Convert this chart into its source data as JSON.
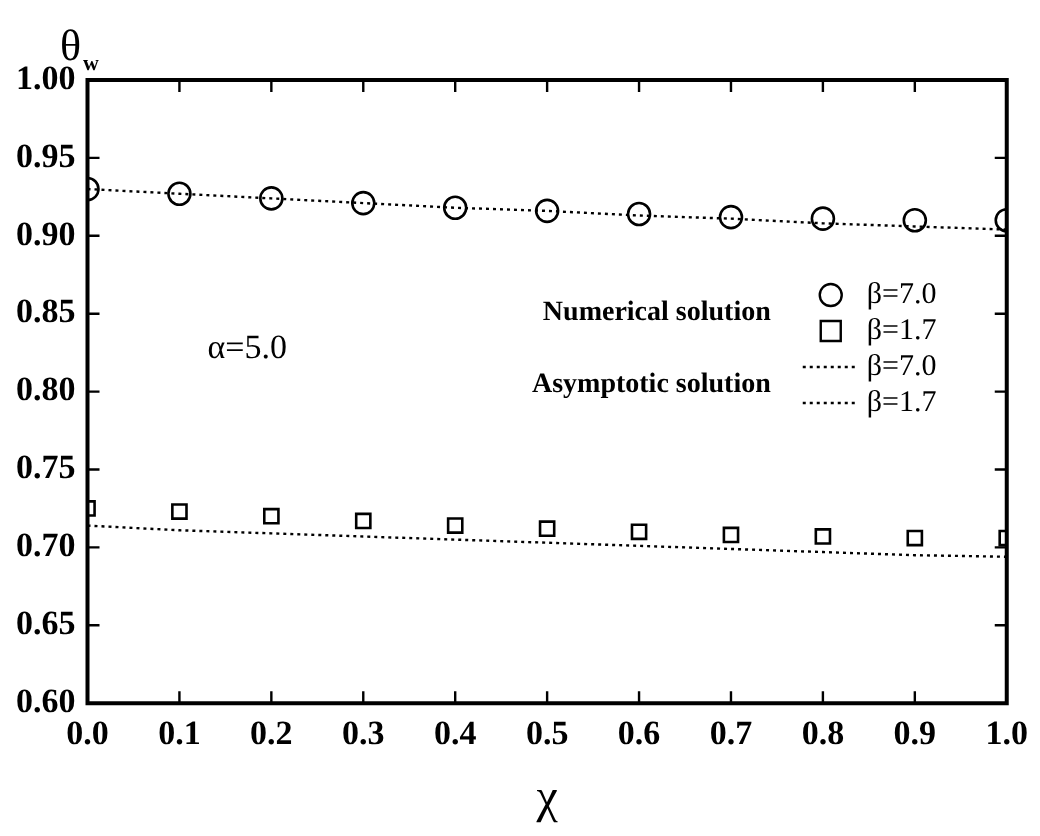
{
  "chart_data": {
    "type": "scatter",
    "xlabel": "χ",
    "ylabel": "θ$_{w}$",
    "x": [
      0,
      0.1,
      0.2,
      0.3,
      0.4,
      0.5,
      0.6,
      0.7,
      0.8,
      0.9,
      1.0
    ],
    "series": [
      {
        "name": "β=7.0",
        "type": "scatter",
        "marker": "circle",
        "color": "#000000",
        "values": [
          0.93,
          0.927,
          0.924,
          0.921,
          0.918,
          0.916,
          0.914,
          0.912,
          0.911,
          0.91,
          0.91
        ]
      },
      {
        "name": "β=1.7",
        "type": "scatter",
        "marker": "square",
        "color": "#000000",
        "values": [
          0.725,
          0.723,
          0.72,
          0.717,
          0.714,
          0.712,
          0.71,
          0.708,
          0.707,
          0.706,
          0.706
        ]
      },
      {
        "name": "β=7.0",
        "type": "line",
        "marker": "none",
        "line_style": "dotted",
        "color": "#000000",
        "values": [
          0.93,
          0.927,
          0.924,
          0.921,
          0.918,
          0.916,
          0.913,
          0.911,
          0.908,
          0.906,
          0.904
        ]
      },
      {
        "name": "β=1.7",
        "type": "line",
        "marker": "none",
        "line_style": "dotted",
        "color": "#000000",
        "values": [
          0.714,
          0.711,
          0.709,
          0.707,
          0.705,
          0.703,
          0.701,
          0.699,
          0.697,
          0.695,
          0.694
        ]
      }
    ],
    "xlim": [
      0,
      1
    ],
    "ylim": [
      0.6,
      1.0
    ],
    "xticks": [
      {
        "value": 0,
        "label": "0.0"
      },
      {
        "value": 0.1,
        "label": "0.1"
      },
      {
        "value": 0.2,
        "label": "0.2"
      },
      {
        "value": 0.3,
        "label": "0.3"
      },
      {
        "value": 0.4,
        "label": "0.4"
      },
      {
        "value": 0.5,
        "label": "0.5"
      },
      {
        "value": 0.6,
        "label": "0.6"
      },
      {
        "value": 0.7,
        "label": "0.7"
      },
      {
        "value": 0.8,
        "label": "0.8"
      },
      {
        "value": 0.9,
        "label": "0.9"
      },
      {
        "value": 1,
        "label": "1.0"
      }
    ],
    "yticks": [
      {
        "value": 0.6,
        "label": "0.60"
      },
      {
        "value": 0.65,
        "label": "0.65"
      },
      {
        "value": 0.7,
        "label": "0.70"
      },
      {
        "value": 0.75,
        "label": "0.75"
      },
      {
        "value": 0.8,
        "label": "0.80"
      },
      {
        "value": 0.85,
        "label": "0.85"
      },
      {
        "value": 0.9,
        "label": "0.90"
      },
      {
        "value": 0.95,
        "label": "0.95"
      },
      {
        "value": 1.0,
        "label": "1.00"
      }
    ],
    "annotations": [
      "Numerical solution",
      "Asymptotic solution",
      "α=5.0"
    ],
    "legend": "right",
    "grid": false
  }
}
